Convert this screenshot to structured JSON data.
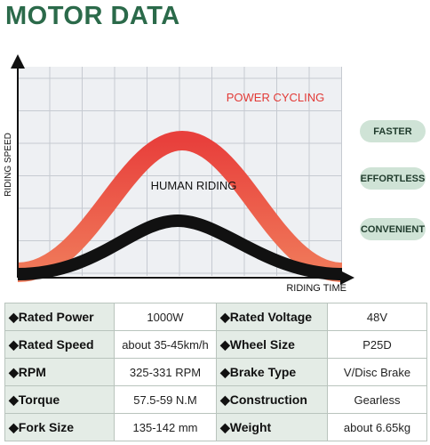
{
  "header": {
    "title": "MOTOR DATA"
  },
  "diagram": {
    "y_axis": "RIDING SPEED",
    "x_axis": "RIDING TIME",
    "curves": [
      {
        "label": "POWER CYCLING"
      },
      {
        "label": "HUMAN RIDING"
      }
    ]
  },
  "badges": [
    "FASTER",
    "EFFORTLESS",
    "CONVENIENT"
  ],
  "table": {
    "rows": [
      [
        "◆Rated Power",
        "1000W",
        "◆Rated Voltage",
        "48V"
      ],
      [
        "◆Rated Speed",
        "about 35-45km/h",
        "◆Wheel Size",
        "P25D"
      ],
      [
        "◆RPM",
        "325-331 RPM",
        "◆Brake Type",
        "V/Disc Brake"
      ],
      [
        "◆Torque",
        "57.5-59 N.M",
        "◆Construction",
        "Gearless"
      ],
      [
        "◆Fork Size",
        "135-142 mm",
        "◆Weight",
        "about 6.65kg"
      ]
    ]
  }
}
